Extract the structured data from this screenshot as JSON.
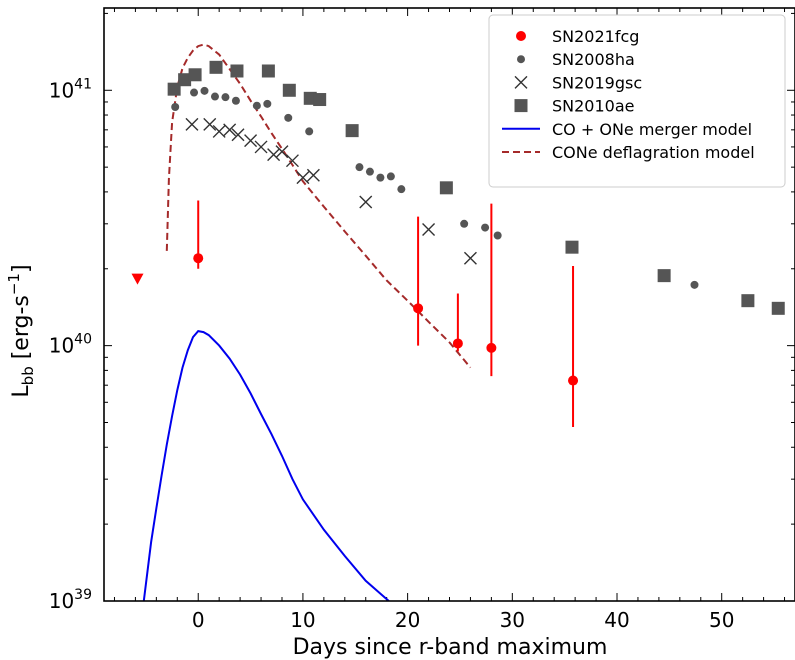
{
  "chart_data": {
    "type": "scatter",
    "xlabel": "Days since r-band maximum",
    "ylabel": {
      "base": "L",
      "sub": "bb",
      "unit_open": " [erg-s",
      "unit_sup": "−1",
      "unit_close": "]"
    },
    "xlim": [
      -9,
      57
    ],
    "ylim": [
      1e+39,
      2.1e+41
    ],
    "yscale": "log",
    "xticks": [
      0,
      10,
      20,
      30,
      40,
      50
    ],
    "xtick_labels": [
      "0",
      "10",
      "20",
      "30",
      "40",
      "50"
    ],
    "ytick_labels": [
      {
        "value": 1e+39,
        "base": "10",
        "exp": "39"
      },
      {
        "value": 1e+40,
        "base": "10",
        "exp": "40"
      },
      {
        "value": 1e+41,
        "base": "10",
        "exp": "41"
      }
    ],
    "legend_position": "top-right",
    "series": [
      {
        "name": "SN2021fcg",
        "kind": "errorbar",
        "color": "#ff0000",
        "marker": "circle",
        "points": [
          {
            "x": 0.0,
            "y": 2.2e+40,
            "ylo": 2e+40,
            "yhi": 3.7e+40
          },
          {
            "x": 21.0,
            "y": 1.4e+40,
            "ylo": 1e+40,
            "yhi": 3.2e+40
          },
          {
            "x": 24.8,
            "y": 1.02e+40,
            "ylo": 9.5e+39,
            "yhi": 1.6e+40
          },
          {
            "x": 28.0,
            "y": 9.8e+39,
            "ylo": 7.6e+39,
            "yhi": 3.6e+40
          },
          {
            "x": 35.8,
            "y": 7.3e+39,
            "ylo": 4.8e+39,
            "yhi": 2.05e+40
          }
        ],
        "upper_limits": [
          {
            "x": -5.8,
            "y": 1.83e+40
          }
        ]
      },
      {
        "name": "SN2008ha",
        "kind": "scatter",
        "color": "#555555",
        "marker": "small-circle",
        "points": [
          {
            "x": -2.2,
            "y": 8.6e+40
          },
          {
            "x": -0.4,
            "y": 9.8e+40
          },
          {
            "x": 0.6,
            "y": 9.95e+40
          },
          {
            "x": 1.6,
            "y": 9.45e+40
          },
          {
            "x": 2.6,
            "y": 9.4e+40
          },
          {
            "x": 3.6,
            "y": 9.1e+40
          },
          {
            "x": 5.6,
            "y": 8.7e+40
          },
          {
            "x": 6.6,
            "y": 8.85e+40
          },
          {
            "x": 8.6,
            "y": 7.8e+40
          },
          {
            "x": 10.6,
            "y": 6.9e+40
          },
          {
            "x": 15.4,
            "y": 5e+40
          },
          {
            "x": 16.4,
            "y": 4.8e+40
          },
          {
            "x": 17.4,
            "y": 4.55e+40
          },
          {
            "x": 18.4,
            "y": 4.6e+40
          },
          {
            "x": 19.4,
            "y": 4.1e+40
          },
          {
            "x": 25.4,
            "y": 3e+40
          },
          {
            "x": 27.4,
            "y": 2.9e+40
          },
          {
            "x": 28.6,
            "y": 2.7e+40
          },
          {
            "x": 47.4,
            "y": 1.73e+40
          }
        ]
      },
      {
        "name": "SN2019gsc",
        "kind": "scatter",
        "color": "#333333",
        "marker": "x",
        "points": [
          {
            "x": -0.6,
            "y": 7.35e+40
          },
          {
            "x": 1.1,
            "y": 7.35e+40
          },
          {
            "x": 2.0,
            "y": 6.9e+40
          },
          {
            "x": 3.0,
            "y": 7e+40
          },
          {
            "x": 3.8,
            "y": 6.7e+40
          },
          {
            "x": 5.0,
            "y": 6.35e+40
          },
          {
            "x": 6.0,
            "y": 6e+40
          },
          {
            "x": 7.2,
            "y": 5.6e+40
          },
          {
            "x": 8.0,
            "y": 5.75e+40
          },
          {
            "x": 9.0,
            "y": 5.3e+40
          },
          {
            "x": 10.0,
            "y": 4.55e+40
          },
          {
            "x": 11.0,
            "y": 4.65e+40
          },
          {
            "x": 16.0,
            "y": 3.65e+40
          },
          {
            "x": 22.0,
            "y": 2.85e+40
          },
          {
            "x": 26.0,
            "y": 2.2e+40
          }
        ]
      },
      {
        "name": "SN2010ae",
        "kind": "scatter",
        "color": "#555555",
        "marker": "square",
        "points": [
          {
            "x": -2.3,
            "y": 1.01e+41
          },
          {
            "x": -1.3,
            "y": 1.1e+41
          },
          {
            "x": -0.3,
            "y": 1.15e+41
          },
          {
            "x": 1.7,
            "y": 1.23e+41
          },
          {
            "x": 3.7,
            "y": 1.19e+41
          },
          {
            "x": 6.7,
            "y": 1.19e+41
          },
          {
            "x": 8.7,
            "y": 1e+41
          },
          {
            "x": 10.7,
            "y": 9.3e+40
          },
          {
            "x": 11.6,
            "y": 9.2e+40
          },
          {
            "x": 14.7,
            "y": 6.95e+40
          },
          {
            "x": 23.7,
            "y": 4.15e+40
          },
          {
            "x": 35.7,
            "y": 2.43e+40
          },
          {
            "x": 44.5,
            "y": 1.88e+40
          },
          {
            "x": 52.5,
            "y": 1.5e+40
          },
          {
            "x": 55.4,
            "y": 1.4e+40
          }
        ]
      },
      {
        "name": "CO + ONe merger model",
        "kind": "line",
        "color": "#0000ee",
        "dash": "solid",
        "points": [
          {
            "x": -5.2,
            "y": 1e+39
          },
          {
            "x": -4.5,
            "y": 1.7e+39
          },
          {
            "x": -4.0,
            "y": 2.3e+39
          },
          {
            "x": -3.5,
            "y": 3.1e+39
          },
          {
            "x": -3.0,
            "y": 4.1e+39
          },
          {
            "x": -2.5,
            "y": 5.3e+39
          },
          {
            "x": -2.0,
            "y": 6.7e+39
          },
          {
            "x": -1.5,
            "y": 8.2e+39
          },
          {
            "x": -1.0,
            "y": 9.6e+39
          },
          {
            "x": -0.5,
            "y": 1.08e+40
          },
          {
            "x": 0.0,
            "y": 1.14e+40
          },
          {
            "x": 0.5,
            "y": 1.13e+40
          },
          {
            "x": 1.0,
            "y": 1.1e+40
          },
          {
            "x": 2.0,
            "y": 1e+40
          },
          {
            "x": 3.0,
            "y": 8.9e+39
          },
          {
            "x": 4.0,
            "y": 7.7e+39
          },
          {
            "x": 5.0,
            "y": 6.5e+39
          },
          {
            "x": 6.0,
            "y": 5.4e+39
          },
          {
            "x": 7.0,
            "y": 4.5e+39
          },
          {
            "x": 8.0,
            "y": 3.7e+39
          },
          {
            "x": 9.0,
            "y": 3e+39
          },
          {
            "x": 10.0,
            "y": 2.5e+39
          },
          {
            "x": 12.0,
            "y": 1.9e+39
          },
          {
            "x": 14.0,
            "y": 1.5e+39
          },
          {
            "x": 16.0,
            "y": 1.2e+39
          },
          {
            "x": 18.2,
            "y": 1e+39
          }
        ]
      },
      {
        "name": "CONe deflagration model",
        "kind": "line",
        "color": "#a52a2a",
        "dash": "dashed",
        "points": [
          {
            "x": -3.0,
            "y": 2.35e+40
          },
          {
            "x": -2.8,
            "y": 4.5e+40
          },
          {
            "x": -2.5,
            "y": 7.5e+40
          },
          {
            "x": -2.0,
            "y": 1.03e+41
          },
          {
            "x": -1.5,
            "y": 1.22e+41
          },
          {
            "x": -1.0,
            "y": 1.34e+41
          },
          {
            "x": -0.5,
            "y": 1.43e+41
          },
          {
            "x": 0.0,
            "y": 1.49e+41
          },
          {
            "x": 0.5,
            "y": 1.51e+41
          },
          {
            "x": 1.0,
            "y": 1.49e+41
          },
          {
            "x": 2.0,
            "y": 1.38e+41
          },
          {
            "x": 3.0,
            "y": 1.21e+41
          },
          {
            "x": 4.0,
            "y": 1.06e+41
          },
          {
            "x": 5.0,
            "y": 9.1e+40
          },
          {
            "x": 6.0,
            "y": 7.9e+40
          },
          {
            "x": 7.0,
            "y": 6.8e+40
          },
          {
            "x": 8.0,
            "y": 5.9e+40
          },
          {
            "x": 9.0,
            "y": 5.1e+40
          },
          {
            "x": 10.0,
            "y": 4.4e+40
          },
          {
            "x": 12.0,
            "y": 3.5e+40
          },
          {
            "x": 14.0,
            "y": 2.8e+40
          },
          {
            "x": 16.0,
            "y": 2.25e+40
          },
          {
            "x": 18.0,
            "y": 1.8e+40
          },
          {
            "x": 20.0,
            "y": 1.5e+40
          },
          {
            "x": 22.0,
            "y": 1.24e+40
          },
          {
            "x": 24.0,
            "y": 1.03e+40
          },
          {
            "x": 26.0,
            "y": 8.2e+39
          }
        ]
      }
    ]
  }
}
